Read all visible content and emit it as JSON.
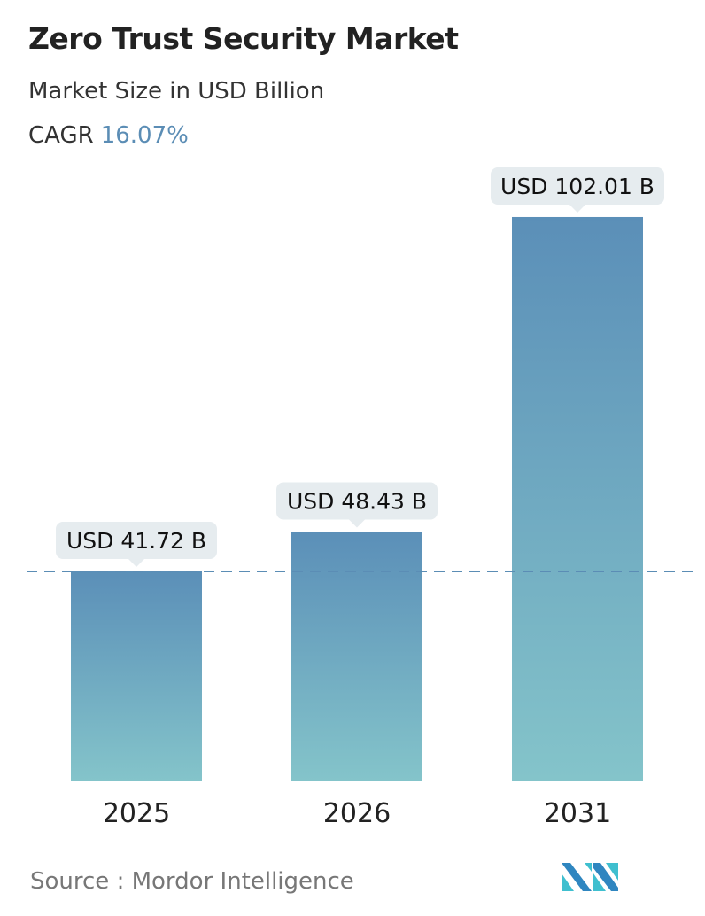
{
  "header": {
    "title": "Zero Trust Security Market",
    "subtitle": "Market Size in USD Billion",
    "cagr_label": "CAGR",
    "cagr_value": "16.07%"
  },
  "chart_data": {
    "type": "bar",
    "categories": [
      "2025",
      "2026",
      "2031"
    ],
    "values": [
      41.72,
      48.43,
      102.01
    ],
    "data_labels": [
      "USD 41.72 B",
      "USD 48.43 B",
      "USD 102.01 B"
    ],
    "reference_line": {
      "value": 41.72,
      "style": "dashed"
    },
    "grid": false,
    "colors": {
      "bar_top": "#5b8fb8",
      "bar_bottom": "#84c4ca",
      "reference_line": "#5b8db5",
      "label_bg": "#e6ecef",
      "accent": "#5b8db5"
    }
  },
  "footer": {
    "source": "Source :  Mordor Intelligence",
    "logo": "Mordor Intelligence logo"
  }
}
